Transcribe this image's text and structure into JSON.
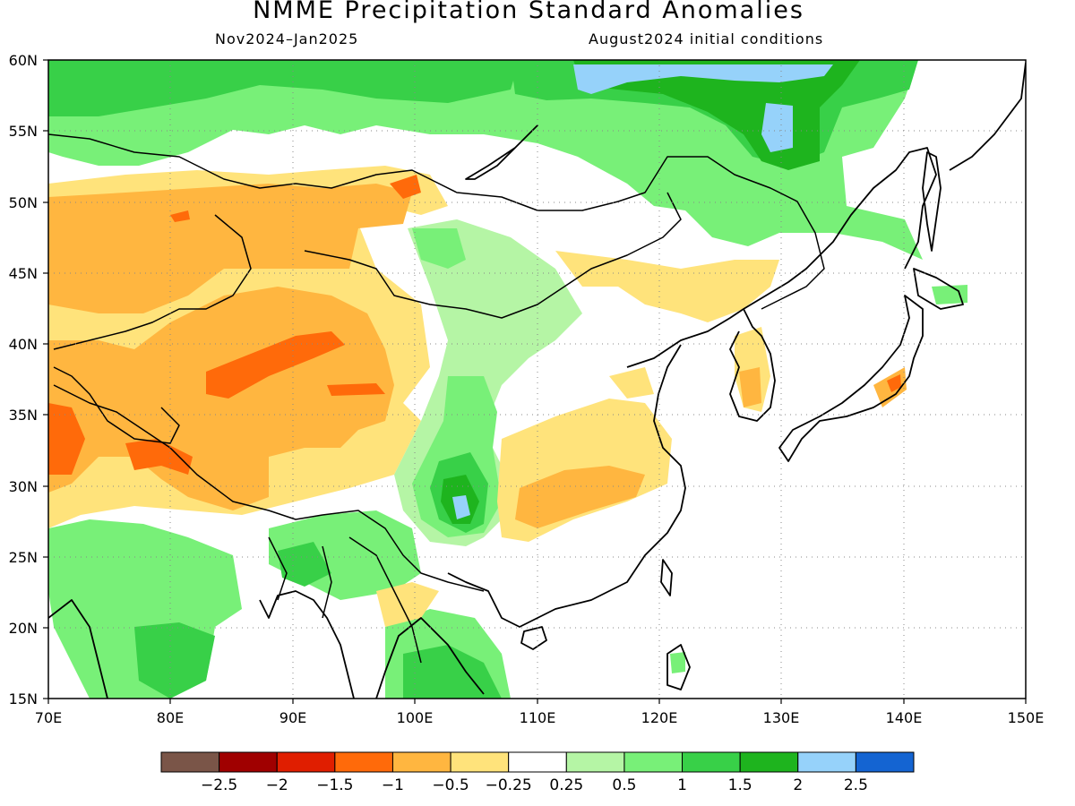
{
  "title": "NMME Precipitation Standard Anomalies",
  "period": "Nov2024–Jan2025",
  "init": "August2024 initial conditions",
  "lat_labels": [
    "60N",
    "55N",
    "50N",
    "45N",
    "40N",
    "35N",
    "30N",
    "25N",
    "20N",
    "15N"
  ],
  "lon_labels": [
    "70E",
    "80E",
    "90E",
    "100E",
    "110E",
    "120E",
    "130E",
    "140E",
    "150E"
  ],
  "colorbar": {
    "colors": [
      "#7a5548",
      "#a00000",
      "#e01e00",
      "#ff6a0a",
      "#ffb640",
      "#ffe37b",
      "#ffffff",
      "#b5f5a5",
      "#78f078",
      "#38d048",
      "#1eb41e",
      "#96d2fa",
      "#1464d2"
    ],
    "labels": [
      "−2.5",
      "−2",
      "−1.5",
      "−1",
      "−0.5",
      "−0.25",
      "0.25",
      "0.5",
      "1",
      "1.5",
      "2",
      "2.5"
    ]
  },
  "colors": {
    "strong_dry": "#ff6a0a",
    "dry": "#ffb640",
    "slight_dry": "#ffe37b",
    "slight_wet": "#b5f5a5",
    "wet": "#78f078",
    "wetter": "#38d048",
    "very_wet": "#1eb41e",
    "extreme_wet": "#96d2fa"
  }
}
